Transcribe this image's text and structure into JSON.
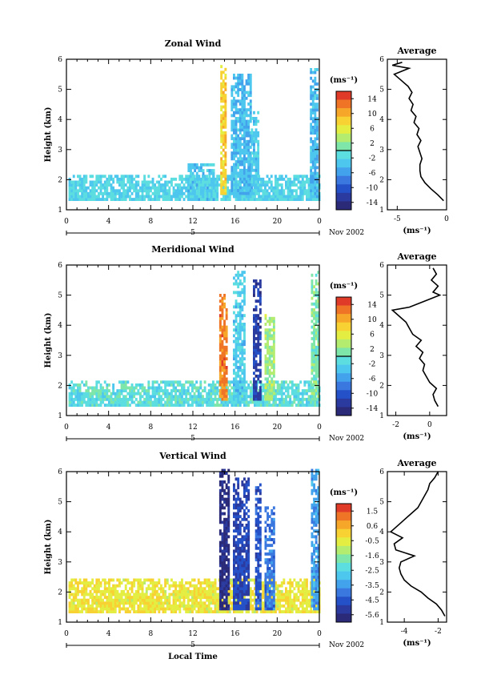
{
  "chart_data": [
    {
      "type": "heatmap",
      "title": "Zonal Wind",
      "ylabel": "Height (km)",
      "xlabel": "",
      "x_ticks": [
        "0",
        "4",
        "8",
        "12",
        "16",
        "20",
        "0"
      ],
      "y_ticks": [
        "1",
        "2",
        "3",
        "4",
        "5",
        "6"
      ],
      "xlim": [
        0,
        24
      ],
      "ylim": [
        1,
        6
      ],
      "date_bar_label": "5",
      "date_label": "Nov 2002",
      "colorbar": {
        "unit": "(ms⁻¹)",
        "min": -16,
        "max": 16,
        "ticks": [
          "14",
          "10",
          "6",
          "2",
          "-2",
          "-6",
          "-10",
          "-14"
        ],
        "zero_line": 0
      },
      "echo_regions": [
        {
          "x": [
            0.2,
            24
          ],
          "y": [
            1.3,
            2.1
          ],
          "value": -2
        },
        {
          "x": [
            11.5,
            14
          ],
          "y": [
            1.3,
            2.5
          ],
          "value": -3
        },
        {
          "x": [
            14.6,
            15.1
          ],
          "y": [
            1.5,
            5.8
          ],
          "value": 8
        },
        {
          "x": [
            15.6,
            17.4
          ],
          "y": [
            1.5,
            5.5
          ],
          "value": -4
        },
        {
          "x": [
            17.5,
            18.2
          ],
          "y": [
            1.5,
            4.2
          ],
          "value": -3
        },
        {
          "x": [
            23.1,
            23.8
          ],
          "y": [
            1.4,
            5.8
          ],
          "value": -4
        }
      ],
      "average_panel": {
        "title": "Average",
        "xlabel": "(ms⁻¹)",
        "x_ticks": [
          "-5",
          "0"
        ],
        "xlim": [
          -6,
          0
        ],
        "y_ticks": [
          "1",
          "2",
          "3",
          "4",
          "5",
          "6"
        ],
        "ylim": [
          1,
          6
        ],
        "profile": {
          "height": [
            1.3,
            1.5,
            1.7,
            1.9,
            2.1,
            2.3,
            2.5,
            2.7,
            2.9,
            3.1,
            3.3,
            3.5,
            3.7,
            3.9,
            4.1,
            4.3,
            4.5,
            4.7,
            4.9,
            5.1,
            5.3,
            5.5,
            5.7,
            5.8,
            5.9
          ],
          "value": [
            -0.3,
            -0.9,
            -1.6,
            -2.2,
            -2.6,
            -2.7,
            -2.7,
            -2.5,
            -2.7,
            -2.9,
            -2.6,
            -3.0,
            -2.8,
            -3.3,
            -3.1,
            -3.6,
            -3.4,
            -3.8,
            -3.5,
            -3.9,
            -4.6,
            -5.3,
            -3.8,
            -5.5,
            -4.5
          ]
        }
      }
    },
    {
      "type": "heatmap",
      "title": "Meridional Wind",
      "ylabel": "Height (km)",
      "xlabel": "",
      "x_ticks": [
        "0",
        "4",
        "8",
        "12",
        "16",
        "20",
        "0"
      ],
      "y_ticks": [
        "1",
        "2",
        "3",
        "4",
        "5",
        "6"
      ],
      "xlim": [
        0,
        24
      ],
      "ylim": [
        1,
        6
      ],
      "date_bar_label": "5",
      "date_label": "Nov 2002",
      "colorbar": {
        "unit": "(ms⁻¹)",
        "min": -16,
        "max": 16,
        "ticks": [
          "14",
          "10",
          "6",
          "2",
          "-2",
          "-6",
          "-10",
          "-14"
        ],
        "zero_line": 0
      },
      "echo_regions": [
        {
          "x": [
            0.2,
            24
          ],
          "y": [
            1.3,
            2.1
          ],
          "value": -1
        },
        {
          "x": [
            14.5,
            15.2
          ],
          "y": [
            1.5,
            5.0
          ],
          "value": 12
        },
        {
          "x": [
            15.8,
            16.8
          ],
          "y": [
            1.5,
            5.8
          ],
          "value": -3
        },
        {
          "x": [
            17.7,
            18.3
          ],
          "y": [
            1.5,
            5.5
          ],
          "value": -12
        },
        {
          "x": [
            18.8,
            19.6
          ],
          "y": [
            1.5,
            4.3
          ],
          "value": 3
        },
        {
          "x": [
            23.2,
            23.8
          ],
          "y": [
            1.5,
            5.8
          ],
          "value": 1
        }
      ],
      "average_panel": {
        "title": "Average",
        "xlabel": "(ms⁻¹)",
        "x_ticks": [
          "-2",
          "0"
        ],
        "xlim": [
          -2.5,
          1
        ],
        "y_ticks": [
          "1",
          "2",
          "3",
          "4",
          "5",
          "6"
        ],
        "ylim": [
          1,
          6
        ],
        "profile": {
          "height": [
            1.3,
            1.5,
            1.7,
            1.9,
            2.1,
            2.3,
            2.5,
            2.7,
            2.9,
            3.1,
            3.3,
            3.5,
            3.7,
            3.9,
            4.1,
            4.3,
            4.5,
            4.6,
            4.8,
            5.0,
            5.1,
            5.3,
            5.5,
            5.7,
            5.9
          ],
          "value": [
            0.5,
            0.3,
            0.2,
            0.4,
            0.0,
            -0.2,
            -0.4,
            -0.3,
            -0.6,
            -0.4,
            -0.8,
            -0.5,
            -1.0,
            -1.2,
            -1.4,
            -1.8,
            -2.2,
            -1.2,
            -0.3,
            0.6,
            0.2,
            0.5,
            0.1,
            0.4,
            0.2
          ]
        }
      }
    },
    {
      "type": "heatmap",
      "title": "Vertical Wind",
      "ylabel": "Height (km)",
      "xlabel": "Local Time",
      "x_ticks": [
        "0",
        "4",
        "8",
        "12",
        "16",
        "20",
        "0"
      ],
      "y_ticks": [
        "1",
        "2",
        "3",
        "4",
        "5",
        "6"
      ],
      "xlim": [
        0,
        24
      ],
      "ylim": [
        1,
        6
      ],
      "date_bar_label": "5",
      "date_label": "Nov 2002",
      "colorbar": {
        "unit": "(ms⁻¹)",
        "min": -6,
        "max": 2,
        "ticks": [
          "1.5",
          "0.6",
          "-0.5",
          "-1.6",
          "-2.5",
          "-3.5",
          "-4.5",
          "-5.6"
        ]
      },
      "echo_regions": [
        {
          "x": [
            0.2,
            24
          ],
          "y": [
            1.3,
            2.4
          ],
          "value": -0.4
        },
        {
          "x": [
            14.5,
            15.3
          ],
          "y": [
            1.4,
            6.0
          ],
          "value": -5.5
        },
        {
          "x": [
            15.8,
            17.2
          ],
          "y": [
            1.4,
            5.8
          ],
          "value": -4.8
        },
        {
          "x": [
            17.9,
            18.4
          ],
          "y": [
            1.4,
            5.6
          ],
          "value": -4.5
        },
        {
          "x": [
            18.8,
            19.6
          ],
          "y": [
            1.4,
            4.8
          ],
          "value": -4.0
        },
        {
          "x": [
            23.2,
            23.8
          ],
          "y": [
            1.4,
            6.0
          ],
          "value": -3.5
        }
      ],
      "average_panel": {
        "title": "Average",
        "xlabel": "(ms⁻¹)",
        "x_ticks": [
          "-4",
          "-2"
        ],
        "xlim": [
          -5,
          -1.5
        ],
        "y_ticks": [
          "1",
          "2",
          "3",
          "4",
          "5",
          "6"
        ],
        "ylim": [
          1,
          6
        ],
        "profile": {
          "height": [
            1.2,
            1.4,
            1.6,
            1.8,
            2.0,
            2.2,
            2.4,
            2.6,
            2.8,
            3.0,
            3.2,
            3.4,
            3.6,
            3.8,
            4.0,
            4.2,
            4.4,
            4.6,
            4.8,
            5.0,
            5.2,
            5.4,
            5.6,
            5.8,
            6.0
          ],
          "value": [
            -1.6,
            -1.8,
            -2.1,
            -2.6,
            -3.0,
            -3.6,
            -4.0,
            -4.2,
            -4.3,
            -4.2,
            -3.4,
            -4.5,
            -4.6,
            -4.1,
            -4.8,
            -4.4,
            -4.0,
            -3.6,
            -3.2,
            -3.0,
            -2.8,
            -2.6,
            -2.5,
            -2.2,
            -2.0
          ]
        }
      }
    }
  ]
}
